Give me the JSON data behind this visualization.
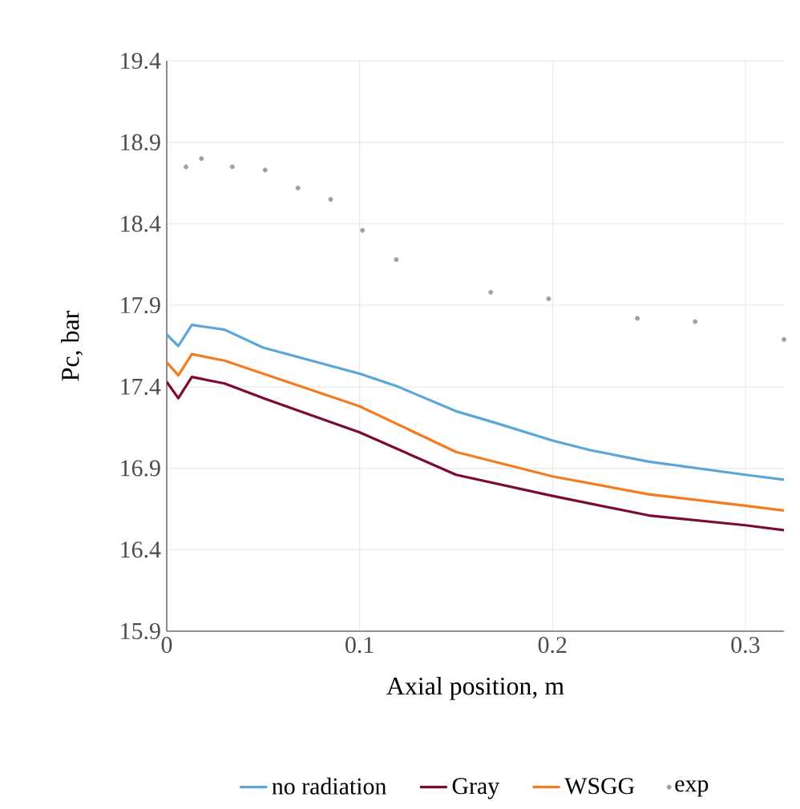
{
  "chart_data": {
    "type": "line",
    "xlabel": "Axial position, m",
    "ylabel": "Pc, bar",
    "xlim": [
      0,
      0.32
    ],
    "xticks": [
      0,
      0.1,
      0.2,
      0.3
    ],
    "ylim": [
      15.9,
      19.4
    ],
    "yticks": [
      15.9,
      16.4,
      16.9,
      17.4,
      17.9,
      18.4,
      18.9,
      19.4
    ],
    "grid": true,
    "legend": "bottom",
    "series": [
      {
        "name": "no radiation",
        "type": "line",
        "color": "#5aa6d8",
        "marker": "none",
        "x": [
          0,
          0.006,
          0.013,
          0.03,
          0.05,
          0.1,
          0.12,
          0.15,
          0.17,
          0.2,
          0.22,
          0.25,
          0.3,
          0.32
        ],
        "values": [
          17.72,
          17.65,
          17.78,
          17.75,
          17.64,
          17.48,
          17.4,
          17.25,
          17.18,
          17.07,
          17.01,
          16.94,
          16.86,
          16.83
        ]
      },
      {
        "name": "Gray",
        "type": "line",
        "color": "#7b0d2a",
        "marker": "none",
        "x": [
          0,
          0.006,
          0.013,
          0.03,
          0.05,
          0.1,
          0.15,
          0.2,
          0.25,
          0.3,
          0.32
        ],
        "values": [
          17.43,
          17.33,
          17.46,
          17.42,
          17.33,
          17.12,
          16.86,
          16.73,
          16.61,
          16.55,
          16.52
        ]
      },
      {
        "name": "WSGG",
        "type": "line",
        "color": "#f47c20",
        "marker": "none",
        "x": [
          0,
          0.006,
          0.013,
          0.03,
          0.05,
          0.1,
          0.15,
          0.2,
          0.25,
          0.3,
          0.32
        ],
        "values": [
          17.55,
          17.47,
          17.6,
          17.56,
          17.48,
          17.28,
          17.0,
          16.85,
          16.74,
          16.67,
          16.64
        ]
      },
      {
        "name": "exp",
        "type": "scatter",
        "color": "#a0a0a0",
        "marker": "circle",
        "x": [
          0.01,
          0.018,
          0.034,
          0.051,
          0.068,
          0.085,
          0.1015,
          0.119,
          0.168,
          0.198,
          0.244,
          0.274,
          0.32
        ],
        "values": [
          18.75,
          18.8,
          18.75,
          18.73,
          18.62,
          18.55,
          18.36,
          18.18,
          17.98,
          17.94,
          17.82,
          17.8,
          17.69
        ]
      }
    ]
  }
}
